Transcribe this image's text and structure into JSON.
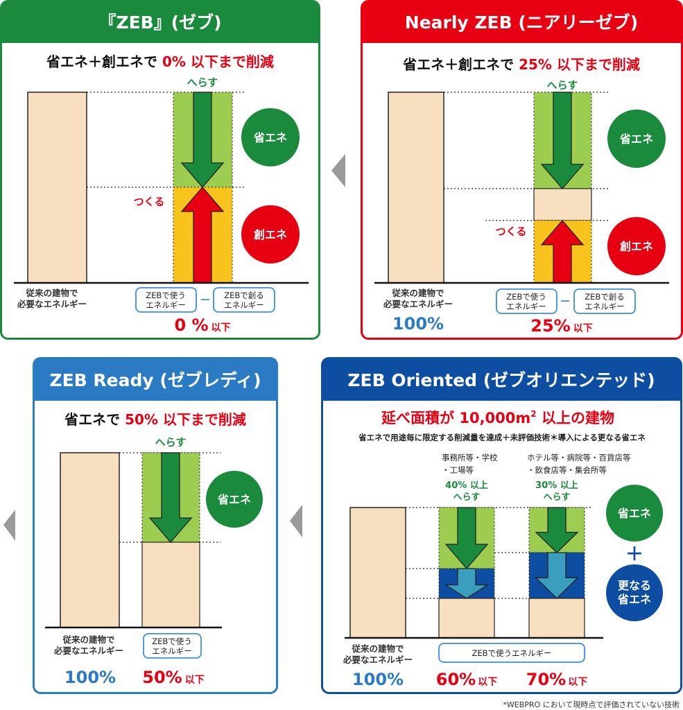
{
  "colors": {
    "zeb": "#1a8a3c",
    "nearly": "#e60012",
    "ready": "#2a7ac4",
    "oriented": "#0d4ea3",
    "base": "#f7dfc0",
    "save": "#9ccc50",
    "create": "#f7c31c",
    "extra_arrow": "#3a9fbf"
  },
  "panels": {
    "zeb": {
      "title": "『ZEB』(ゼブ)",
      "subtitle_a": "省エネ＋創エネで ",
      "subtitle_b": "0% 以下まで削減",
      "reduce": "へらす",
      "make": "つくる",
      "circle_save": "省エネ",
      "circle_create": "創エネ",
      "base_l1": "従来の建物で",
      "base_l2": "必要なエネルギー",
      "use_l1": "ZEBで使う",
      "use_l2": "エネルギー",
      "make_l1": "ZEBで創る",
      "make_l2": "エネルギー",
      "minus": "－",
      "pct": "0 %",
      "pct_suffix": "以下"
    },
    "nearly": {
      "title": "Nearly ZEB (ニアリーゼブ)",
      "subtitle_a": "省エネ＋創エネで ",
      "subtitle_b": "25% 以下まで削減",
      "reduce": "へらす",
      "make": "つくる",
      "circle_save": "省エネ",
      "circle_create": "創エネ",
      "base_l1": "従来の建物で",
      "base_l2": "必要なエネルギー",
      "use_l1": "ZEBで使う",
      "use_l2": "エネルギー",
      "make_l1": "ZEBで創る",
      "make_l2": "エネルギー",
      "minus": "－",
      "base_pct": "100%",
      "pct": "25%",
      "pct_suffix": "以下"
    },
    "ready": {
      "title": "ZEB Ready (ゼブレディ)",
      "subtitle_a": "省エネで ",
      "subtitle_b": "50% 以下まで削減",
      "reduce": "へらす",
      "circle_save": "省エネ",
      "base_l1": "従来の建物で",
      "base_l2": "必要なエネルギー",
      "use_l1": "ZEBで使う",
      "use_l2": "エネルギー",
      "base_pct": "100%",
      "pct": "50%",
      "pct_suffix": "以下"
    },
    "oriented": {
      "title": "ZEB Oriented (ゼブオリエンテッド)",
      "subtitle_pre": "延べ面積が 10,000m",
      "subtitle_sup": "2",
      "subtitle_post": " 以上の建物",
      "desc": "省エネで用途毎に限定する削減量を達成＋未評価技術＊導入による更なる省エネ",
      "cat1_l1": "事務所等・学校",
      "cat1_l2": "・工場等",
      "cat2_l1": "ホテル等・病院等・百貨店等",
      "cat2_l2": "・飲食店等・集会所等",
      "red1_l1": "40% 以上",
      "red1_l2": "へらす",
      "red2_l1": "30% 以上",
      "red2_l2": "へらす",
      "circle_save": "省エネ",
      "plus": "＋",
      "circle_extra_l1": "更なる",
      "circle_extra_l2": "省エネ",
      "base_l1": "従来の建物で",
      "base_l2": "必要なエネルギー",
      "use": "ZEBで使うエネルギー",
      "base_pct": "100%",
      "pct1": "60%",
      "pct2": "70%",
      "pct_suffix": "以下"
    }
  },
  "footnote": "*WEBPRO において現時点で評価されていない技術"
}
